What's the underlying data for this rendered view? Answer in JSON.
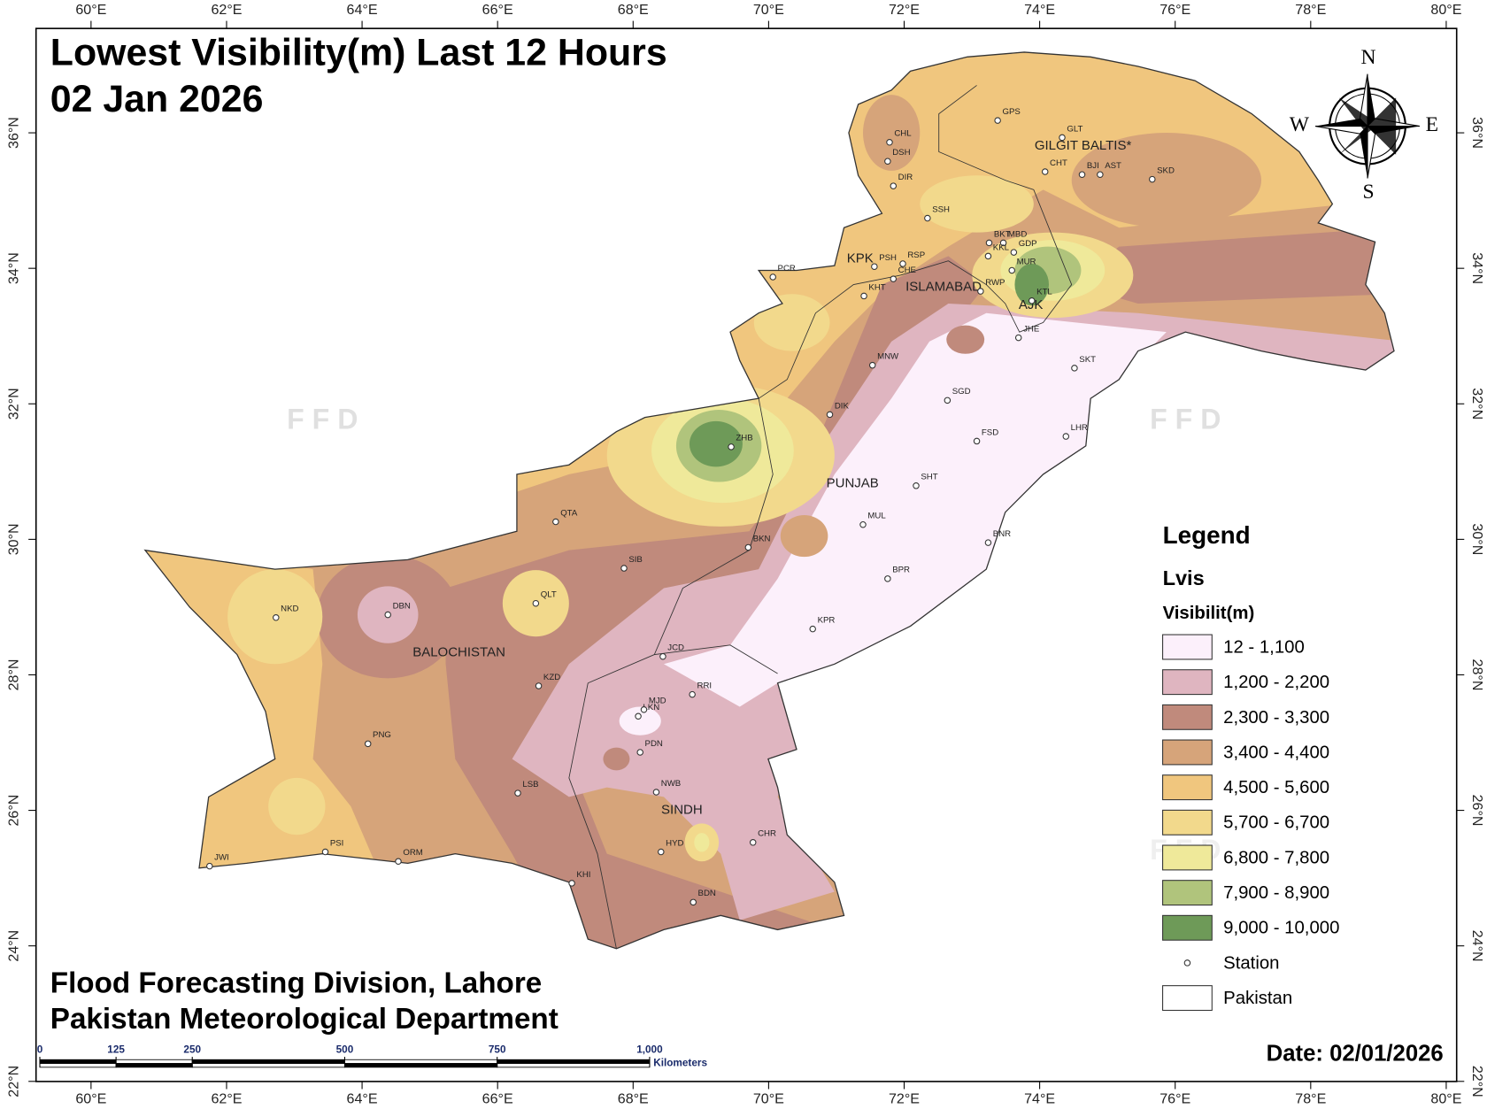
{
  "title_lines": [
    "Lowest Visibility(m) Last 12 Hours",
    "02 Jan 2026"
  ],
  "lon_ticks": [
    {
      "value": 60,
      "label": "60°E"
    },
    {
      "value": 62,
      "label": "62°E"
    },
    {
      "value": 64,
      "label": "64°E"
    },
    {
      "value": 66,
      "label": "66°E"
    },
    {
      "value": 68,
      "label": "68°E"
    },
    {
      "value": 70,
      "label": "70°E"
    },
    {
      "value": 72,
      "label": "72°E"
    },
    {
      "value": 74,
      "label": "74°E"
    },
    {
      "value": 76,
      "label": "76°E"
    },
    {
      "value": 78,
      "label": "78°E"
    },
    {
      "value": 80,
      "label": "80°E"
    }
  ],
  "lat_ticks": [
    {
      "value": 22,
      "label": "22°N"
    },
    {
      "value": 24,
      "label": "24°N"
    },
    {
      "value": 26,
      "label": "26°N"
    },
    {
      "value": 28,
      "label": "28°N"
    },
    {
      "value": 30,
      "label": "30°N"
    },
    {
      "value": 32,
      "label": "32°N"
    },
    {
      "value": 34,
      "label": "34°N"
    },
    {
      "value": 36,
      "label": "36°N"
    }
  ],
  "regions": [
    "GILGIT BALTIS*",
    "KPK",
    "ISLAMABAD",
    "AJK",
    "PUNJAB",
    "BALOCHISTAN",
    "SINDH"
  ],
  "stations": [
    "GPS",
    "GLT",
    "CHL",
    "DSH",
    "DIR",
    "CHT",
    "BJI",
    "AST",
    "SKD",
    "SSH",
    "BKT",
    "MBD",
    "KKL",
    "GDP",
    "MUR",
    "PSH",
    "RSP",
    "CHE",
    "KHT",
    "PCR",
    "RWP",
    "KTL",
    "JHE",
    "SKT",
    "MNW",
    "SGD",
    "DIK",
    "LHR",
    "FSD",
    "ZHB",
    "SHT",
    "QTA",
    "MUL",
    "BNR",
    "BKN",
    "SIB",
    "BPR",
    "QLT",
    "NKD",
    "DBN",
    "KPR",
    "JCD",
    "KZD",
    "RRI",
    "LKN",
    "MJD",
    "PDN",
    "PNG",
    "NWB",
    "LSB",
    "HYD",
    "CHR",
    "PSI",
    "ORM",
    "JWI",
    "KHI",
    "BDN"
  ],
  "watermark": "F F D",
  "compass": {
    "n": "N",
    "e": "E",
    "s": "S",
    "w": "W"
  },
  "legend": {
    "title": "Legend",
    "layer": "Lvis",
    "field": "Visibilit(m)",
    "classes": [
      {
        "label": "12 - 1,100",
        "color": "#fcf0fb"
      },
      {
        "label": "1,200 - 2,200",
        "color": "#dfb5c0"
      },
      {
        "label": "2,300 - 3,300",
        "color": "#c08a7c"
      },
      {
        "label": "3,400 - 4,400",
        "color": "#d6a47a"
      },
      {
        "label": "4,500 - 5,600",
        "color": "#f0c67e"
      },
      {
        "label": "5,700 - 6,700",
        "color": "#f2d98c"
      },
      {
        "label": "6,800 - 7,800",
        "color": "#efe99a"
      },
      {
        "label": "7,900 - 8,900",
        "color": "#b0c47c"
      },
      {
        "label": "9,000 - 10,000",
        "color": "#6e9a58"
      }
    ],
    "station": "Station",
    "boundary": "Pakistan"
  },
  "footer_lines": [
    "Flood Forecasting Division, Lahore",
    "Pakistan Meteorological Department"
  ],
  "scale_bar": {
    "ticks": [
      {
        "value": 0,
        "label": "0"
      },
      {
        "value": 125,
        "label": "125"
      },
      {
        "value": 250,
        "label": "250"
      },
      {
        "value": 500,
        "label": "500"
      },
      {
        "value": 750,
        "label": "750"
      },
      {
        "value": 1000,
        "label": "1,000"
      }
    ],
    "unit": "Kilometers"
  },
  "date": "Date: 02/01/2026"
}
